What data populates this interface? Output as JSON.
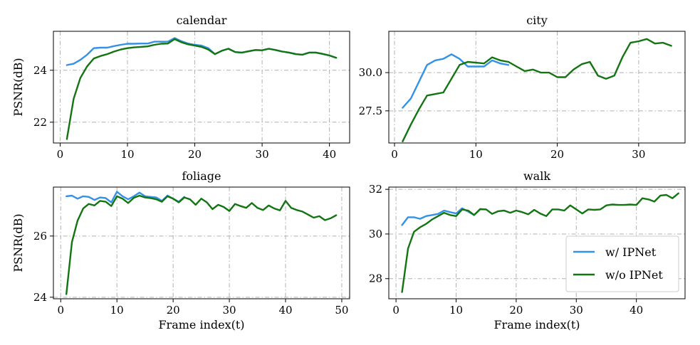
{
  "chart_data": [
    {
      "type": "line",
      "title": "calendar",
      "xlabel": "",
      "ylabel": "PSNR(dB)",
      "xlim": [
        -1.0,
        43.0
      ],
      "ylim": [
        21.2,
        25.5
      ],
      "xticks": [
        0,
        10,
        20,
        30,
        40
      ],
      "yticks": [
        22,
        24
      ],
      "ytick_labels": [
        "22",
        "24"
      ],
      "series": [
        {
          "name": "w/ IPNet",
          "color": "#3391e6",
          "x": [
            1,
            2,
            3,
            4,
            5,
            6,
            7,
            8,
            9,
            10,
            11,
            12,
            13,
            14,
            15,
            16,
            17,
            18,
            19,
            20,
            21,
            22,
            23,
            24,
            25,
            26,
            27,
            28,
            29,
            30,
            31,
            32,
            33,
            34,
            35,
            36,
            37,
            38,
            39,
            40,
            41
          ],
          "y": [
            24.2,
            24.25,
            24.4,
            24.6,
            24.85,
            24.87,
            24.87,
            24.93,
            24.98,
            25.02,
            25.02,
            25.03,
            25.03,
            25.1,
            25.1,
            25.1,
            25.24,
            25.12,
            25.03,
            24.98,
            24.95,
            24.85,
            24.62,
            24.75,
            24.83,
            24.7,
            24.68,
            24.73,
            24.78,
            24.77,
            24.83,
            24.78,
            24.72,
            24.68,
            24.62,
            24.6,
            24.68,
            24.68,
            24.63,
            24.57,
            24.48
          ]
        },
        {
          "name": "w/o IPNet",
          "color": "#127512",
          "x": [
            1,
            2,
            3,
            4,
            5,
            6,
            7,
            8,
            9,
            10,
            11,
            12,
            13,
            14,
            15,
            16,
            17,
            18,
            19,
            20,
            21,
            22,
            23,
            24,
            25,
            26,
            27,
            28,
            29,
            30,
            31,
            32,
            33,
            34,
            35,
            36,
            37,
            38,
            39,
            40,
            41
          ],
          "y": [
            21.35,
            22.9,
            23.7,
            24.15,
            24.45,
            24.55,
            24.62,
            24.72,
            24.8,
            24.85,
            24.88,
            24.9,
            24.92,
            24.98,
            25.02,
            25.03,
            25.2,
            25.08,
            25.0,
            24.95,
            24.9,
            24.8,
            24.62,
            24.75,
            24.83,
            24.7,
            24.68,
            24.73,
            24.78,
            24.77,
            24.83,
            24.78,
            24.72,
            24.68,
            24.62,
            24.6,
            24.68,
            24.68,
            24.63,
            24.57,
            24.48
          ]
        }
      ]
    },
    {
      "type": "line",
      "title": "city",
      "xlabel": "",
      "ylabel": "",
      "xlim": [
        -0.7,
        35.7
      ],
      "ylim": [
        25.4,
        32.7
      ],
      "xticks": [
        0,
        10,
        20,
        30
      ],
      "yticks": [
        27.5,
        30.0
      ],
      "ytick_labels": [
        "27.5",
        "30.0"
      ],
      "series": [
        {
          "name": "w/ IPNet",
          "color": "#3391e6",
          "x": [
            1,
            2,
            3,
            4,
            5,
            6,
            7,
            8,
            9,
            10,
            11,
            12,
            13,
            14
          ],
          "y": [
            27.7,
            28.3,
            29.4,
            30.5,
            30.8,
            30.9,
            31.2,
            30.9,
            30.4,
            30.4,
            30.4,
            30.8,
            30.6,
            30.5
          ]
        },
        {
          "name": "w/o IPNet",
          "color": "#127512",
          "x": [
            1,
            2,
            3,
            4,
            5,
            6,
            7,
            8,
            9,
            10,
            11,
            12,
            13,
            14,
            15,
            16,
            17,
            18,
            19,
            20,
            21,
            22,
            23,
            24,
            25,
            26,
            27,
            28,
            29,
            30,
            31,
            32,
            33,
            34
          ],
          "y": [
            25.5,
            26.6,
            27.6,
            28.5,
            28.6,
            28.7,
            29.6,
            30.5,
            30.7,
            30.65,
            30.6,
            31.0,
            30.8,
            30.7,
            30.4,
            30.1,
            30.2,
            30.0,
            30.0,
            29.7,
            29.7,
            30.2,
            30.55,
            30.7,
            29.8,
            29.6,
            29.8,
            31.0,
            31.95,
            32.05,
            32.2,
            31.9,
            31.95,
            31.75
          ]
        }
      ]
    },
    {
      "type": "line",
      "title": "foliage",
      "xlabel": "Frame index(t)",
      "ylabel": "PSNR(dB)",
      "xlim": [
        -1.3,
        51.4
      ],
      "ylim": [
        23.95,
        27.6
      ],
      "xticks": [
        0,
        10,
        20,
        30,
        40,
        50
      ],
      "yticks": [
        24,
        26
      ],
      "ytick_labels": [
        "24",
        "26"
      ],
      "series": [
        {
          "name": "w/ IPNet",
          "color": "#3391e6",
          "x": [
            1,
            2,
            3,
            4,
            5,
            6,
            7,
            8,
            9,
            10,
            11,
            12,
            13,
            14,
            15,
            16,
            17,
            18,
            19,
            20,
            21,
            22
          ],
          "y": [
            27.3,
            27.32,
            27.22,
            27.3,
            27.28,
            27.18,
            27.26,
            27.24,
            27.1,
            27.45,
            27.3,
            27.2,
            27.3,
            27.42,
            27.3,
            27.28,
            27.26,
            27.15,
            27.32,
            27.22,
            27.12,
            27.28
          ]
        },
        {
          "name": "w/o IPNet",
          "color": "#127512",
          "x": [
            1,
            2,
            3,
            4,
            5,
            6,
            7,
            8,
            9,
            10,
            11,
            12,
            13,
            14,
            15,
            16,
            17,
            18,
            19,
            20,
            21,
            22,
            23,
            24,
            25,
            26,
            27,
            28,
            29,
            30,
            31,
            32,
            33,
            34,
            35,
            36,
            37,
            38,
            39,
            40,
            41,
            42,
            43,
            44,
            45,
            46,
            47,
            48,
            49
          ],
          "y": [
            24.1,
            25.8,
            26.5,
            26.9,
            27.05,
            27.0,
            27.15,
            27.12,
            26.98,
            27.3,
            27.22,
            27.08,
            27.25,
            27.32,
            27.26,
            27.24,
            27.2,
            27.12,
            27.3,
            27.22,
            27.1,
            27.26,
            27.2,
            27.02,
            27.22,
            27.1,
            26.88,
            27.02,
            26.95,
            26.82,
            27.05,
            26.98,
            26.92,
            27.08,
            26.92,
            26.85,
            27.0,
            26.9,
            26.84,
            27.15,
            26.92,
            26.85,
            26.8,
            26.7,
            26.6,
            26.65,
            26.52,
            26.58,
            26.68
          ]
        }
      ]
    },
    {
      "type": "line",
      "title": "walk",
      "xlabel": "Frame index(t)",
      "ylabel": "",
      "xlim": [
        -1.2,
        48.1
      ],
      "ylim": [
        27.1,
        32.1
      ],
      "xticks": [
        0,
        10,
        20,
        30,
        40
      ],
      "yticks": [
        28,
        30,
        32
      ],
      "ytick_labels": [
        "28",
        "30",
        "32"
      ],
      "legend": {
        "location": "lower right",
        "entries": [
          "w/ IPNet",
          "w/o IPNet"
        ]
      },
      "series": [
        {
          "name": "w/ IPNet",
          "color": "#3391e6",
          "x": [
            1,
            2,
            3,
            4,
            5,
            6,
            7,
            8,
            9,
            10,
            11,
            12,
            13,
            14,
            15
          ],
          "y": [
            30.4,
            30.75,
            30.75,
            30.68,
            30.8,
            30.85,
            30.9,
            31.05,
            30.98,
            30.92,
            31.15,
            31.0,
            30.85,
            31.1,
            31.1
          ]
        },
        {
          "name": "w/o IPNet",
          "color": "#127512",
          "x": [
            1,
            2,
            3,
            4,
            5,
            6,
            7,
            8,
            9,
            10,
            11,
            12,
            13,
            14,
            15,
            16,
            17,
            18,
            19,
            20,
            21,
            22,
            23,
            24,
            25,
            26,
            27,
            28,
            29,
            30,
            31,
            32,
            33,
            34,
            35,
            36,
            37,
            38,
            39,
            40,
            41,
            42,
            43,
            44,
            45,
            46,
            47
          ],
          "y": [
            27.4,
            29.35,
            30.1,
            30.3,
            30.45,
            30.65,
            30.8,
            30.95,
            30.85,
            30.8,
            31.1,
            31.05,
            30.85,
            31.12,
            31.1,
            30.9,
            31.02,
            31.05,
            30.95,
            31.05,
            30.98,
            30.88,
            31.08,
            30.92,
            30.8,
            31.1,
            31.1,
            31.05,
            31.28,
            31.1,
            30.92,
            31.1,
            31.08,
            31.1,
            31.28,
            31.32,
            31.3,
            31.3,
            31.32,
            31.3,
            31.6,
            31.55,
            31.45,
            31.72,
            31.75,
            31.6,
            31.82
          ]
        }
      ]
    }
  ]
}
